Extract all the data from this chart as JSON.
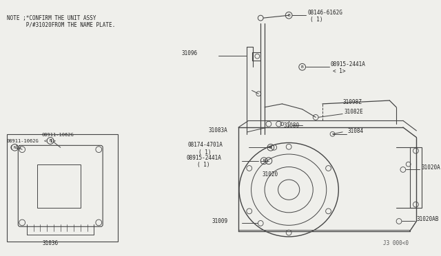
{
  "bg_color": "#efefeb",
  "line_color": "#444444",
  "text_color": "#222222",
  "note_line1": "NOTE ;*CONFIRM THE UNIT ASSY",
  "note_line2": "      P/#31020FROM THE NAME PLATE.",
  "footer": "J3 000<0",
  "fig_w": 6.4,
  "fig_h": 3.72,
  "dpi": 100
}
